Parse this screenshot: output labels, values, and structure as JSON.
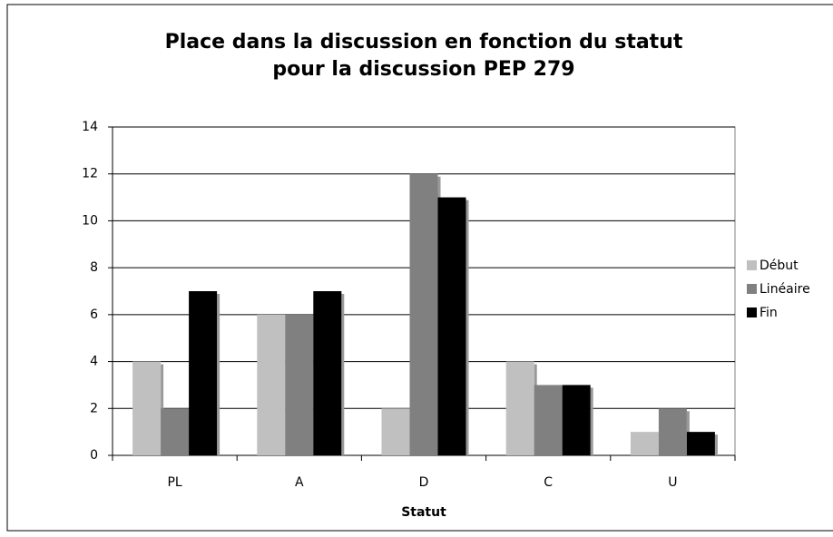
{
  "chart_data": {
    "type": "bar",
    "title": [
      "Place dans la discussion en fonction du statut",
      "pour la discussion PEP 279"
    ],
    "x_label": "Statut",
    "categories": [
      "PL",
      "A",
      "D",
      "C",
      "U"
    ],
    "series": [
      {
        "name": "Début",
        "color": "#c0c0c0",
        "values": [
          4,
          6,
          2,
          4,
          1
        ]
      },
      {
        "name": "Linéaire",
        "color": "#808080",
        "values": [
          2,
          6,
          12,
          3,
          2
        ]
      },
      {
        "name": "Fin",
        "color": "#000000",
        "values": [
          7,
          7,
          11,
          3,
          1
        ]
      }
    ],
    "ylim": [
      0,
      14
    ],
    "yticks": [
      0,
      2,
      4,
      6,
      8,
      10,
      12,
      14
    ],
    "grid": true,
    "legend": "right"
  }
}
